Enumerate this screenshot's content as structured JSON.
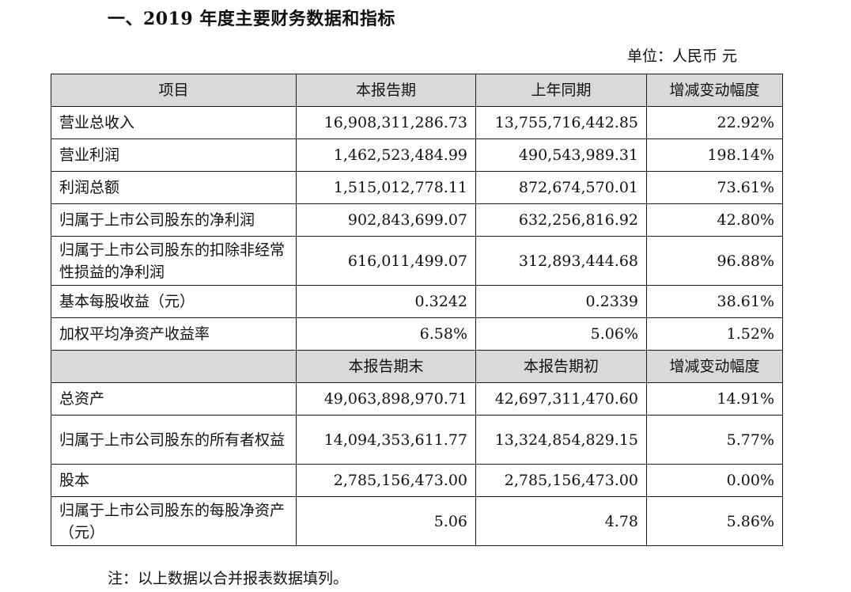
{
  "title": "一、2019 年度主要财务数据和指标",
  "unit": "单位：人民币  元",
  "table1": {
    "headers": [
      "项目",
      "本报告期",
      "上年同期",
      "增减变动幅度"
    ],
    "rows": [
      {
        "label": "营业总收入",
        "current": "16,908,311,286.73",
        "previous": "13,755,716,442.85",
        "change": "22.92%"
      },
      {
        "label": "营业利润",
        "current": "1,462,523,484.99",
        "previous": "490,543,989.31",
        "change": "198.14%"
      },
      {
        "label": "利润总额",
        "current": "1,515,012,778.11",
        "previous": "872,674,570.01",
        "change": "73.61%"
      },
      {
        "label": "归属于上市公司股东的净利润",
        "current": "902,843,699.07",
        "previous": "632,256,816.92",
        "change": "42.80%"
      },
      {
        "label": "归属于上市公司股东的扣除非经常性损益的净利润",
        "current": "616,011,499.07",
        "previous": "312,893,444.68",
        "change": "96.88%"
      },
      {
        "label": "基本每股收益（元）",
        "current": "0.3242",
        "previous": "0.2339",
        "change": "38.61%"
      },
      {
        "label": "加权平均净资产收益率",
        "current": "6.58%",
        "previous": "5.06%",
        "change": "1.52%"
      }
    ]
  },
  "table2": {
    "headers": [
      "",
      "本报告期末",
      "本报告期初",
      "增减变动幅度"
    ],
    "rows": [
      {
        "label": "总资产",
        "current": "49,063,898,970.71",
        "previous": "42,697,311,470.60",
        "change": "14.91%"
      },
      {
        "label": "归属于上市公司股东的所有者权益",
        "current": "14,094,353,611.77",
        "previous": "13,324,854,829.15",
        "change": "5.77%"
      },
      {
        "label": "股本",
        "current": "2,785,156,473.00",
        "previous": "2,785,156,473.00",
        "change": "0.00%"
      },
      {
        "label": "归属于上市公司股东的每股净资产（元）",
        "current": "5.06",
        "previous": "4.78",
        "change": "5.86%"
      }
    ]
  },
  "note": "注：以上数据以合并报表数据填列。"
}
